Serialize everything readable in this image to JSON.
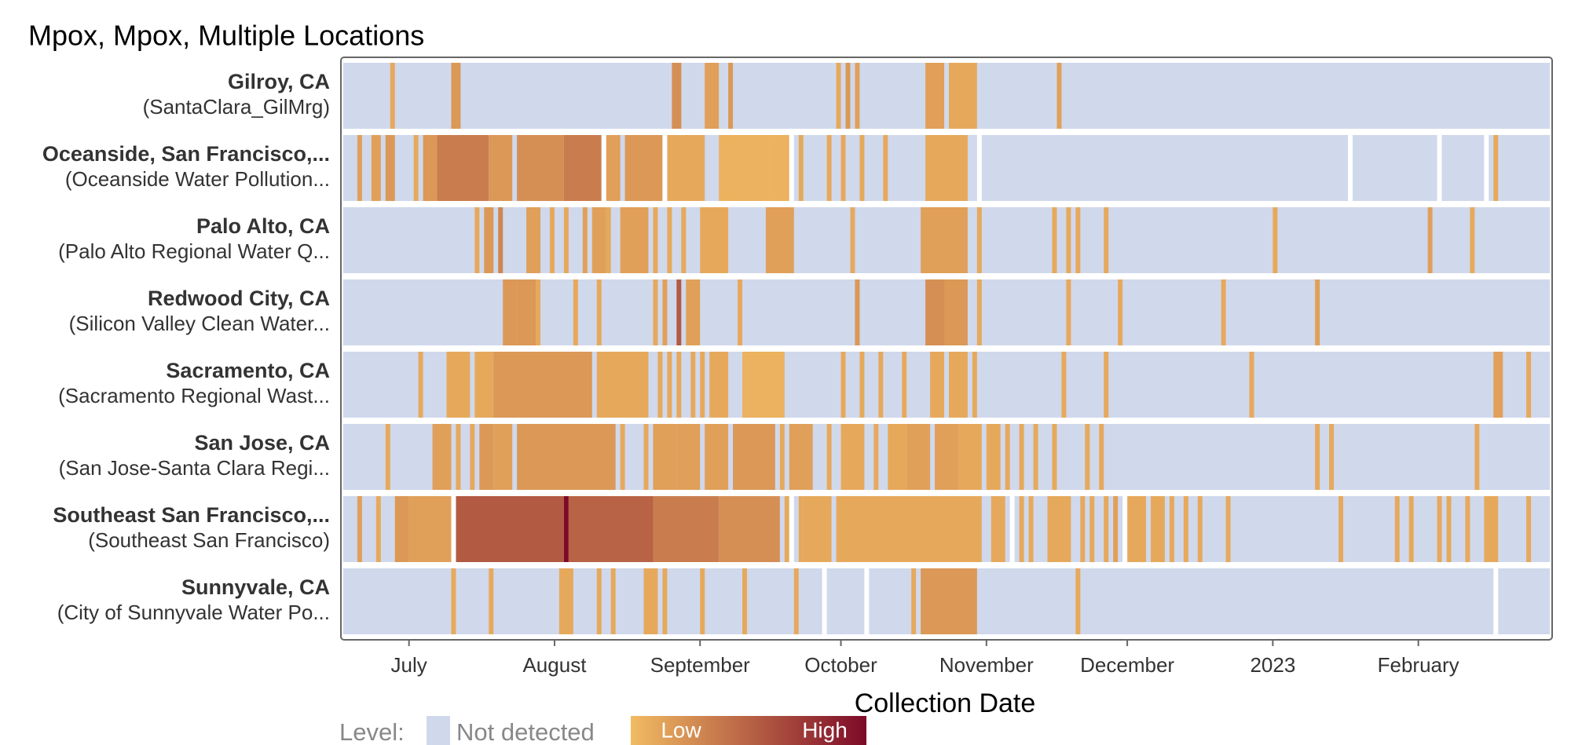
{
  "chart_data": {
    "type": "heatmap",
    "title": "Mpox, Mpox, Multiple Locations",
    "x_label": "Collection Date",
    "xlim": [
      "2022-06-17",
      "2023-03-01"
    ],
    "xticks": [
      {
        "value": "2022-07-01",
        "label": "July"
      },
      {
        "value": "2022-08-01",
        "label": "August"
      },
      {
        "value": "2022-09-01",
        "label": "September"
      },
      {
        "value": "2022-10-01",
        "label": "October"
      },
      {
        "value": "2022-11-01",
        "label": "November"
      },
      {
        "value": "2022-12-01",
        "label": "December"
      },
      {
        "value": "2023-01-01",
        "label": "2023"
      },
      {
        "value": "2023-02-01",
        "label": "February"
      }
    ],
    "colors": {
      "not_detected": "#d0d8ec",
      "low": "#f2bb62",
      "high": "#7d0a28",
      "missing": "#ffffff"
    },
    "legend": {
      "title": "Level:",
      "not_detected": "Not detected",
      "low": "Low",
      "high": "High"
    },
    "rows": [
      {
        "name": "Gilroy, CA",
        "subname": "(SantaClara_GilMrg)",
        "detections": [
          [
            "2022-06-27",
            "2022-06-27",
            0.1
          ],
          [
            "2022-07-10",
            "2022-07-11",
            0.2
          ],
          [
            "2022-08-26",
            "2022-08-27",
            0.25
          ],
          [
            "2022-09-02",
            "2022-09-04",
            0.15
          ],
          [
            "2022-09-07",
            "2022-09-07",
            0.2
          ],
          [
            "2022-09-30",
            "2022-09-30",
            0.1
          ],
          [
            "2022-10-02",
            "2022-10-02",
            0.2
          ],
          [
            "2022-10-04",
            "2022-10-04",
            0.15
          ],
          [
            "2022-10-19",
            "2022-10-22",
            0.15
          ],
          [
            "2022-10-24",
            "2022-10-29",
            0.1
          ],
          [
            "2022-11-16",
            "2022-11-16",
            0.15
          ]
        ],
        "missing": []
      },
      {
        "name": "Oceanside, San Francisco,...",
        "subname": "(Oceanside Water Pollution...",
        "detections": [
          [
            "2022-06-20",
            "2022-06-20",
            0.15
          ],
          [
            "2022-06-23",
            "2022-06-24",
            0.15
          ],
          [
            "2022-06-26",
            "2022-06-27",
            0.2
          ],
          [
            "2022-07-02",
            "2022-07-02",
            0.1
          ],
          [
            "2022-07-04",
            "2022-07-06",
            0.2
          ],
          [
            "2022-07-07",
            "2022-07-17",
            0.35
          ],
          [
            "2022-07-18",
            "2022-07-22",
            0.2
          ],
          [
            "2022-07-24",
            "2022-08-02",
            0.25
          ],
          [
            "2022-08-03",
            "2022-08-10",
            0.35
          ],
          [
            "2022-08-12",
            "2022-08-14",
            0.15
          ],
          [
            "2022-08-16",
            "2022-08-23",
            0.2
          ],
          [
            "2022-08-25",
            "2022-09-01",
            0.1
          ],
          [
            "2022-09-05",
            "2022-09-15",
            0.05
          ],
          [
            "2022-09-16",
            "2022-09-19",
            0.05
          ],
          [
            "2022-09-22",
            "2022-09-22",
            0.1
          ],
          [
            "2022-09-28",
            "2022-09-28",
            0.1
          ],
          [
            "2022-10-01",
            "2022-10-01",
            0.1
          ],
          [
            "2022-10-05",
            "2022-10-05",
            0.1
          ],
          [
            "2022-10-10",
            "2022-10-10",
            0.1
          ],
          [
            "2022-10-19",
            "2022-10-27",
            0.1
          ],
          [
            "2023-02-17",
            "2023-02-17",
            0.1
          ]
        ],
        "missing": [
          "2022-08-11",
          "2022-08-24",
          "2022-09-20",
          "2022-10-30",
          "2023-01-17",
          "2023-02-05",
          "2023-02-15"
        ]
      },
      {
        "name": "Palo Alto, CA",
        "subname": "(Palo Alto Regional Water Q...",
        "detections": [
          [
            "2022-07-15",
            "2022-07-15",
            0.1
          ],
          [
            "2022-07-17",
            "2022-07-18",
            0.2
          ],
          [
            "2022-07-20",
            "2022-07-20",
            0.3
          ],
          [
            "2022-07-26",
            "2022-07-28",
            0.15
          ],
          [
            "2022-07-31",
            "2022-07-31",
            0.1
          ],
          [
            "2022-08-03",
            "2022-08-03",
            0.1
          ],
          [
            "2022-08-07",
            "2022-08-07",
            0.15
          ],
          [
            "2022-08-09",
            "2022-08-11",
            0.15
          ],
          [
            "2022-08-12",
            "2022-08-12",
            0.1
          ],
          [
            "2022-08-15",
            "2022-08-20",
            0.15
          ],
          [
            "2022-08-22",
            "2022-08-22",
            0.1
          ],
          [
            "2022-08-25",
            "2022-08-25",
            0.1
          ],
          [
            "2022-08-28",
            "2022-08-28",
            0.1
          ],
          [
            "2022-09-01",
            "2022-09-06",
            0.1
          ],
          [
            "2022-09-15",
            "2022-09-20",
            0.15
          ],
          [
            "2022-10-03",
            "2022-10-03",
            0.1
          ],
          [
            "2022-10-18",
            "2022-10-27",
            0.15
          ],
          [
            "2022-10-30",
            "2022-10-30",
            0.1
          ],
          [
            "2022-11-15",
            "2022-11-15",
            0.1
          ],
          [
            "2022-11-18",
            "2022-11-18",
            0.1
          ],
          [
            "2022-11-20",
            "2022-11-20",
            0.1
          ],
          [
            "2022-11-26",
            "2022-11-26",
            0.1
          ],
          [
            "2023-01-01",
            "2023-01-01",
            0.1
          ],
          [
            "2023-02-03",
            "2023-02-03",
            0.15
          ],
          [
            "2023-02-12",
            "2023-02-12",
            0.1
          ]
        ],
        "missing": []
      },
      {
        "name": "Redwood City, CA",
        "subname": "(Silicon Valley Clean Water...",
        "detections": [
          [
            "2022-07-21",
            "2022-07-23",
            0.2
          ],
          [
            "2022-07-24",
            "2022-07-27",
            0.2
          ],
          [
            "2022-07-28",
            "2022-07-28",
            0.1
          ],
          [
            "2022-08-05",
            "2022-08-05",
            0.1
          ],
          [
            "2022-08-10",
            "2022-08-10",
            0.1
          ],
          [
            "2022-08-22",
            "2022-08-22",
            0.1
          ],
          [
            "2022-08-24",
            "2022-08-24",
            0.15
          ],
          [
            "2022-08-27",
            "2022-08-27",
            0.55
          ],
          [
            "2022-08-29",
            "2022-08-31",
            0.15
          ],
          [
            "2022-09-09",
            "2022-09-09",
            0.1
          ],
          [
            "2022-10-04",
            "2022-10-04",
            0.2
          ],
          [
            "2022-10-19",
            "2022-10-22",
            0.25
          ],
          [
            "2022-10-23",
            "2022-10-27",
            0.2
          ],
          [
            "2022-10-30",
            "2022-10-30",
            0.1
          ],
          [
            "2022-11-18",
            "2022-11-18",
            0.1
          ],
          [
            "2022-11-29",
            "2022-11-29",
            0.1
          ],
          [
            "2022-12-21",
            "2022-12-21",
            0.1
          ],
          [
            "2023-01-10",
            "2023-01-10",
            0.15
          ]
        ],
        "missing": []
      },
      {
        "name": "Sacramento, CA",
        "subname": "(Sacramento Regional Wast...",
        "detections": [
          [
            "2022-07-03",
            "2022-07-03",
            0.1
          ],
          [
            "2022-07-09",
            "2022-07-13",
            0.1
          ],
          [
            "2022-07-15",
            "2022-07-18",
            0.1
          ],
          [
            "2022-07-19",
            "2022-08-08",
            0.2
          ],
          [
            "2022-08-10",
            "2022-08-20",
            0.1
          ],
          [
            "2022-08-23",
            "2022-08-23",
            0.1
          ],
          [
            "2022-08-25",
            "2022-08-25",
            0.1
          ],
          [
            "2022-08-27",
            "2022-08-27",
            0.1
          ],
          [
            "2022-08-30",
            "2022-08-30",
            0.1
          ],
          [
            "2022-09-01",
            "2022-09-01",
            0.1
          ],
          [
            "2022-09-03",
            "2022-09-06",
            0.1
          ],
          [
            "2022-09-10",
            "2022-09-18",
            0.05
          ],
          [
            "2022-10-01",
            "2022-10-01",
            0.1
          ],
          [
            "2022-10-05",
            "2022-10-05",
            0.1
          ],
          [
            "2022-10-09",
            "2022-10-09",
            0.1
          ],
          [
            "2022-10-14",
            "2022-10-14",
            0.1
          ],
          [
            "2022-10-20",
            "2022-10-22",
            0.1
          ],
          [
            "2022-10-24",
            "2022-10-27",
            0.1
          ],
          [
            "2022-10-29",
            "2022-10-29",
            0.1
          ],
          [
            "2022-11-17",
            "2022-11-17",
            0.1
          ],
          [
            "2022-11-26",
            "2022-11-26",
            0.1
          ],
          [
            "2022-12-27",
            "2022-12-27",
            0.1
          ],
          [
            "2023-02-17",
            "2023-02-18",
            0.15
          ],
          [
            "2023-02-24",
            "2023-02-24",
            0.1
          ]
        ],
        "missing": []
      },
      {
        "name": "San Jose, CA",
        "subname": "(San Jose-Santa Clara Regi...",
        "detections": [
          [
            "2022-06-26",
            "2022-06-26",
            0.1
          ],
          [
            "2022-07-06",
            "2022-07-09",
            0.15
          ],
          [
            "2022-07-11",
            "2022-07-11",
            0.1
          ],
          [
            "2022-07-14",
            "2022-07-14",
            0.1
          ],
          [
            "2022-07-16",
            "2022-07-18",
            0.2
          ],
          [
            "2022-07-19",
            "2022-07-22",
            0.15
          ],
          [
            "2022-07-24",
            "2022-08-13",
            0.2
          ],
          [
            "2022-08-15",
            "2022-08-15",
            0.1
          ],
          [
            "2022-08-20",
            "2022-08-20",
            0.1
          ],
          [
            "2022-08-22",
            "2022-08-26",
            0.15
          ],
          [
            "2022-08-27",
            "2022-08-31",
            0.15
          ],
          [
            "2022-09-02",
            "2022-09-06",
            0.15
          ],
          [
            "2022-09-08",
            "2022-09-16",
            0.2
          ],
          [
            "2022-09-18",
            "2022-09-18",
            0.1
          ],
          [
            "2022-09-20",
            "2022-09-24",
            0.15
          ],
          [
            "2022-09-28",
            "2022-09-28",
            0.1
          ],
          [
            "2022-10-01",
            "2022-10-05",
            0.1
          ],
          [
            "2022-10-08",
            "2022-10-08",
            0.1
          ],
          [
            "2022-10-11",
            "2022-10-14",
            0.1
          ],
          [
            "2022-10-15",
            "2022-10-19",
            0.15
          ],
          [
            "2022-10-21",
            "2022-10-25",
            0.15
          ],
          [
            "2022-10-26",
            "2022-10-30",
            0.1
          ],
          [
            "2022-11-01",
            "2022-11-03",
            0.1
          ],
          [
            "2022-11-05",
            "2022-11-05",
            0.1
          ],
          [
            "2022-11-08",
            "2022-11-08",
            0.1
          ],
          [
            "2022-11-11",
            "2022-11-11",
            0.1
          ],
          [
            "2022-11-15",
            "2022-11-15",
            0.1
          ],
          [
            "2022-11-22",
            "2022-11-22",
            0.1
          ],
          [
            "2022-11-25",
            "2022-11-25",
            0.1
          ],
          [
            "2023-01-10",
            "2023-01-10",
            0.1
          ],
          [
            "2023-01-13",
            "2023-01-13",
            0.1
          ],
          [
            "2023-02-13",
            "2023-02-13",
            0.1
          ]
        ],
        "missing": []
      },
      {
        "name": "Southeast San Francisco,...",
        "subname": "(Southeast San Francisco)",
        "detections": [
          [
            "2022-06-20",
            "2022-06-20",
            0.15
          ],
          [
            "2022-06-24",
            "2022-06-24",
            0.1
          ],
          [
            "2022-06-28",
            "2022-06-30",
            0.2
          ],
          [
            "2022-07-01",
            "2022-07-09",
            0.15
          ],
          [
            "2022-07-11",
            "2022-08-02",
            0.55
          ],
          [
            "2022-08-03",
            "2022-08-03",
            1
          ],
          [
            "2022-08-04",
            "2022-08-21",
            0.5
          ],
          [
            "2022-08-22",
            "2022-09-04",
            0.35
          ],
          [
            "2022-09-05",
            "2022-09-17",
            0.25
          ],
          [
            "2022-09-19",
            "2022-09-19",
            0.1
          ],
          [
            "2022-09-22",
            "2022-09-22",
            0.1
          ],
          [
            "2022-09-23",
            "2022-09-28",
            0.1
          ],
          [
            "2022-09-30",
            "2022-10-30",
            0.1
          ],
          [
            "2022-11-02",
            "2022-11-04",
            0.1
          ],
          [
            "2022-11-08",
            "2022-11-08",
            0.1
          ],
          [
            "2022-11-10",
            "2022-11-10",
            0.1
          ],
          [
            "2022-11-14",
            "2022-11-18",
            0.1
          ],
          [
            "2022-11-21",
            "2022-11-21",
            0.1
          ],
          [
            "2022-11-23",
            "2022-11-23",
            0.1
          ],
          [
            "2022-11-26",
            "2022-11-26",
            0.1
          ],
          [
            "2022-11-28",
            "2022-11-28",
            0.15
          ],
          [
            "2022-12-01",
            "2022-12-04",
            0.1
          ],
          [
            "2022-12-06",
            "2022-12-08",
            0.1
          ],
          [
            "2022-12-10",
            "2022-12-10",
            0.1
          ],
          [
            "2022-12-13",
            "2022-12-13",
            0.1
          ],
          [
            "2022-12-16",
            "2022-12-16",
            0.1
          ],
          [
            "2022-12-22",
            "2022-12-22",
            0.1
          ],
          [
            "2023-01-15",
            "2023-01-15",
            0.1
          ],
          [
            "2023-01-27",
            "2023-01-27",
            0.1
          ],
          [
            "2023-01-30",
            "2023-01-30",
            0.1
          ],
          [
            "2023-02-05",
            "2023-02-05",
            0.1
          ],
          [
            "2023-02-07",
            "2023-02-07",
            0.1
          ],
          [
            "2023-02-11",
            "2023-02-11",
            0.1
          ],
          [
            "2023-02-15",
            "2023-02-17",
            0.1
          ],
          [
            "2023-02-24",
            "2023-02-24",
            0.1
          ]
        ],
        "missing": [
          "2022-07-10",
          "2022-09-20",
          "2022-11-06",
          "2022-11-30"
        ]
      },
      {
        "name": "Sunnyvale, CA",
        "subname": "(City of Sunnyvale Water Po...",
        "detections": [
          [
            "2022-07-10",
            "2022-07-10",
            0.1
          ],
          [
            "2022-07-18",
            "2022-07-18",
            0.1
          ],
          [
            "2022-08-02",
            "2022-08-04",
            0.1
          ],
          [
            "2022-08-10",
            "2022-08-10",
            0.1
          ],
          [
            "2022-08-13",
            "2022-08-13",
            0.1
          ],
          [
            "2022-08-20",
            "2022-08-22",
            0.1
          ],
          [
            "2022-08-24",
            "2022-08-24",
            0.1
          ],
          [
            "2022-09-01",
            "2022-09-01",
            0.1
          ],
          [
            "2022-09-10",
            "2022-09-10",
            0.1
          ],
          [
            "2022-09-21",
            "2022-09-21",
            0.1
          ],
          [
            "2022-10-16",
            "2022-10-16",
            0.1
          ],
          [
            "2022-10-18",
            "2022-10-29",
            0.2
          ],
          [
            "2022-11-20",
            "2022-11-20",
            0.1
          ]
        ],
        "missing": [
          "2022-09-27",
          "2022-10-06",
          "2023-02-17"
        ]
      }
    ]
  }
}
